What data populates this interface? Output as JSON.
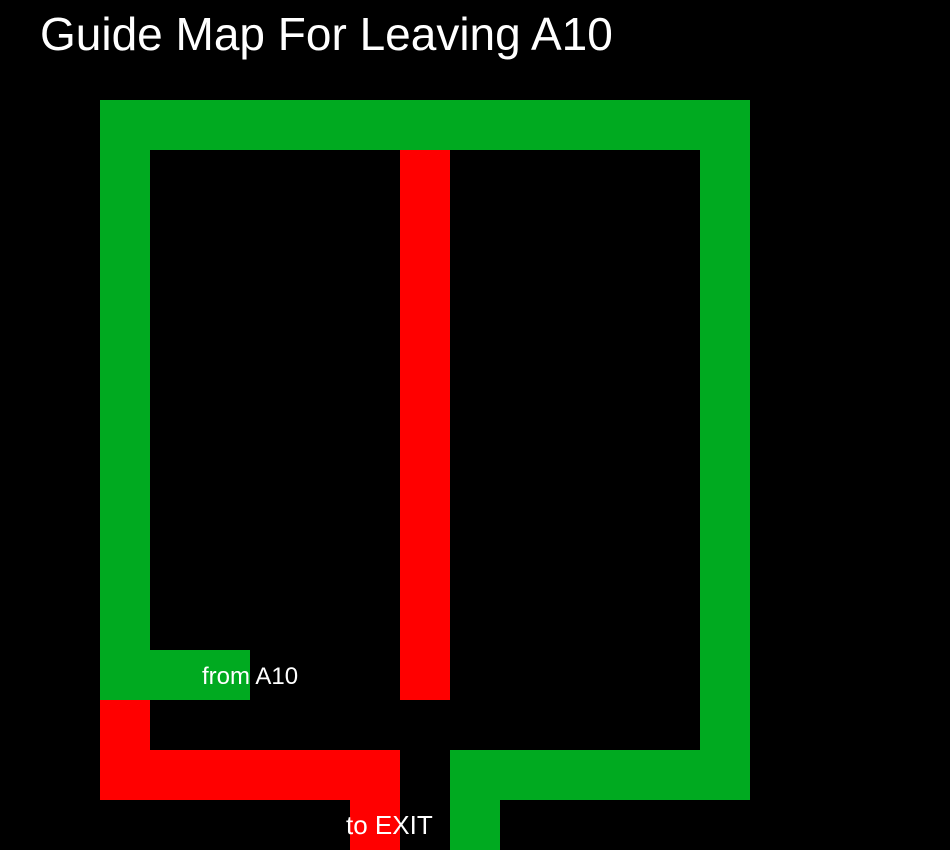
{
  "map": {
    "title": "Guide Map For Leaving A10",
    "labels": {
      "start": "from A10",
      "exit": "to EXIT"
    },
    "colors": {
      "background": "#000000",
      "route": "#00aa20",
      "blocked": "#ff0000",
      "text": "#ffffff"
    }
  }
}
